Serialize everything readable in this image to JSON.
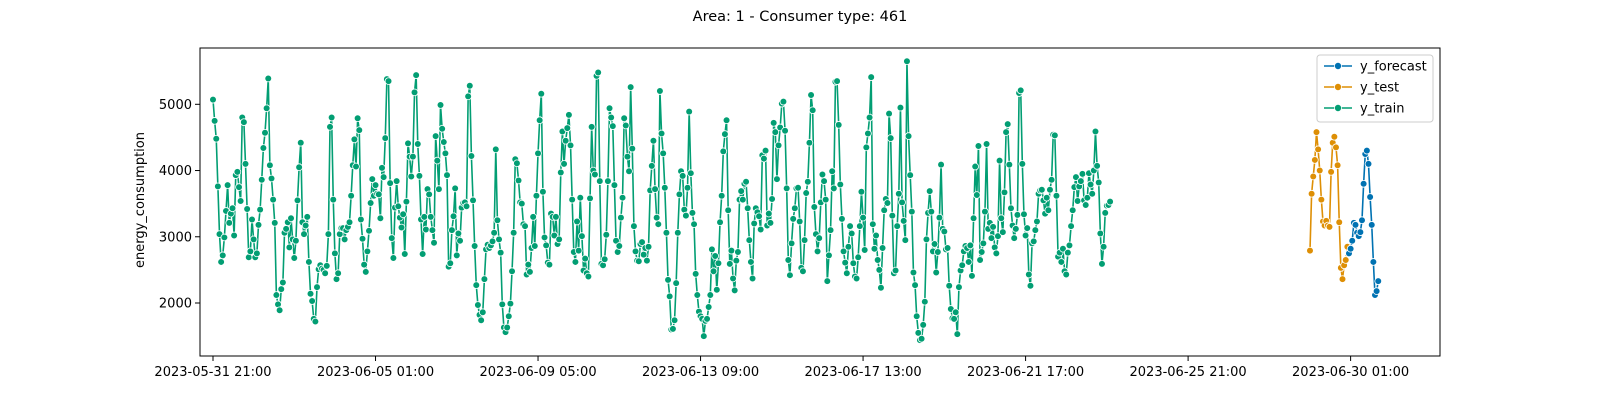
{
  "chart_data": {
    "type": "line",
    "title": "Area: 1 - Consumer type: 461",
    "xlabel": "",
    "ylabel": "energy_consumption",
    "x_start": "2023-05-31 21:00",
    "x_freq": "hourly",
    "x_ticks": [
      "2023-05-31 21:00",
      "2023-06-05 01:00",
      "2023-06-09 05:00",
      "2023-06-13 09:00",
      "2023-06-17 13:00",
      "2023-06-21 17:00",
      "2023-06-25 21:00",
      "2023-06-30 01:00"
    ],
    "yticks": [
      2000,
      3000,
      4000,
      5000
    ],
    "xlim": [
      "2023-05-31 13:00",
      "2023-07-02 08:00"
    ],
    "ylim": [
      1200,
      5850
    ],
    "grid": false,
    "legend_position": "top-right",
    "colors": {
      "y_forecast": "#0072b2",
      "y_test": "#de8f05",
      "y_train": "#029e73"
    },
    "series": [
      {
        "name": "y_train",
        "start": "2023-05-31 21:00",
        "values": [
          5070,
          4750,
          4480,
          3760,
          3040,
          2620,
          2720,
          2990,
          3390,
          3780,
          3210,
          3350,
          3430,
          3020,
          3930,
          3980,
          3750,
          3540,
          4800,
          4730,
          4100,
          3420,
          2690,
          2780,
          3260,
          2960,
          2690,
          2750,
          3180,
          3410,
          3860,
          4340,
          4570,
          4940,
          5390,
          4080,
          3880,
          3560,
          3210,
          2120,
          1980,
          1890,
          2210,
          2310,
          3060,
          3120,
          3220,
          2840,
          3280,
          2960,
          2680,
          2940,
          3550,
          4050,
          4420,
          3220,
          3040,
          3170,
          3300,
          2620,
          2140,
          2030,
          1760,
          1720,
          2240,
          2510,
          2570,
          2520,
          2500,
          2450,
          2560,
          3040,
          4660,
          4800,
          3560,
          2750,
          2360,
          2450,
          3040,
          3130,
          3130,
          2960,
          3100,
          3150,
          3220,
          3620,
          4080,
          4470,
          4060,
          4790,
          4610,
          3260,
          2970,
          2580,
          2470,
          2780,
          3090,
          3510,
          3870,
          3620,
          3780,
          3650,
          3640,
          3280,
          4040,
          3900,
          4490,
          5380,
          5350,
          3810,
          2980,
          2680,
          3440,
          3840,
          3460,
          3290,
          3140,
          3340,
          2740,
          3530,
          4410,
          4210,
          3910,
          4210,
          5180,
          5440,
          4400,
          3920,
          3260,
          2740,
          3300,
          3110,
          3720,
          3640,
          3300,
          3100,
          2910,
          4520,
          4150,
          3720,
          4990,
          4630,
          4430,
          4260,
          3930,
          2550,
          2600,
          3100,
          3310,
          3730,
          2720,
          3050,
          2940,
          3440,
          3510,
          3520,
          3460,
          5120,
          5280,
          4220,
          3550,
          2860,
          2270,
          1970,
          1820,
          1740,
          1860,
          2360,
          2810,
          2880,
          2830,
          2870,
          2930,
          3060,
          4320,
          3250,
          2960,
          2760,
          1980,
          1630,
          1560,
          1630,
          1800,
          1990,
          2480,
          3060,
          4170,
          4110,
          3850,
          3520,
          3500,
          3190,
          3160,
          2430,
          2580,
          2470,
          2830,
          3300,
          2860,
          3620,
          4260,
          4760,
          5160,
          3680,
          2990,
          2870,
          2610,
          2580,
          3350,
          3300,
          3020,
          3300,
          2890,
          2960,
          3970,
          4590,
          4100,
          4450,
          4640,
          4840,
          4380,
          3560,
          2770,
          2620,
          3230,
          2790,
          3590,
          3010,
          2490,
          2670,
          2450,
          2400,
          3580,
          4660,
          4000,
          3940,
          5430,
          5480,
          3840,
          2590,
          2570,
          2660,
          3030,
          3840,
          4940,
          4800,
          4670,
          3780,
          2940,
          2770,
          2860,
          3290,
          3590,
          4790,
          4680,
          4210,
          3990,
          5260,
          4330,
          3160,
          2780,
          2640,
          2630,
          2890,
          2920,
          2730,
          2830,
          2640,
          2850,
          3700,
          4070,
          4450,
          3720,
          3290,
          3190,
          5200,
          4560,
          4260,
          3740,
          3060,
          2350,
          2100,
          1600,
          1610,
          1740,
          2300,
          3060,
          3640,
          3990,
          3920,
          3410,
          3320,
          3740,
          4890,
          3960,
          3360,
          3190,
          2440,
          2120,
          1870,
          1800,
          1760,
          1500,
          1730,
          1760,
          1940,
          2120,
          2810,
          2480,
          2710,
          2200,
          2600,
          3220,
          3620,
          4290,
          4550,
          4760,
          3400,
          2590,
          2790,
          2370,
          2190,
          2640,
          2770,
          3560,
          3690,
          3560,
          3800,
          3830,
          3430,
          2950,
          2620,
          2370,
          3200,
          3430,
          3370,
          3310,
          3110,
          4230,
          4180,
          4300,
          3170,
          3350,
          3210,
          3570,
          4720,
          4580,
          3870,
          4380,
          4650,
          5010,
          5040,
          4600,
          3730,
          2650,
          2420,
          2900,
          3270,
          3430,
          3730,
          3740,
          3230,
          2530,
          2480,
          2950,
          3660,
          3830,
          4420,
          5140,
          4910,
          3450,
          3040,
          2780,
          2980,
          3520,
          3940,
          3840,
          3560,
          2330,
          2720,
          3100,
          3990,
          3730,
          5340,
          5350,
          4690,
          3790,
          3270,
          2780,
          2610,
          2450,
          2850,
          3160,
          3050,
          2600,
          2400,
          2370,
          2690,
          3160,
          3680,
          3290,
          2800,
          4350,
          4560,
          4800,
          5410,
          3190,
          2820,
          3020,
          2650,
          2500,
          2230,
          2830,
          3400,
          3570,
          3510,
          4860,
          4490,
          3320,
          2450,
          2490,
          3160,
          3650,
          4950,
          3520,
          3240,
          2950,
          5650,
          4520,
          3930,
          3380,
          2460,
          2270,
          1800,
          1550,
          1440,
          1460,
          1670,
          2020,
          2960,
          3360,
          3690,
          3380,
          2780,
          2890,
          2460,
          2770,
          3290,
          4090,
          3120,
          3080,
          2810,
          2830,
          2260,
          1910,
          1770,
          1760,
          1860,
          1530,
          2240,
          2490,
          2570,
          2780,
          2860,
          2830,
          2620,
          2870,
          2410,
          3280,
          4060,
          3630,
          4370,
          2650,
          2770,
          2900,
          3380,
          4400,
          3120,
          3210,
          2980,
          3150,
          2840,
          2750,
          3010,
          4150,
          3280,
          3070,
          3670,
          4580,
          4700,
          4090,
          3430,
          3170,
          2980,
          3120,
          3330,
          5170,
          5210,
          4100,
          3340,
          3020,
          3130,
          2430,
          2260,
          2900,
          2930,
          3100,
          3230,
          3650,
          3700,
          3710,
          3550,
          3350,
          3590,
          3400,
          3710,
          3860,
          4540,
          4530,
          3620,
          2700,
          2760,
          2620,
          2820,
          2480,
          2430,
          2760,
          2870,
          3160,
          3400,
          3750,
          3900,
          3540,
          3760,
          3840,
          3950,
          3550,
          3480,
          3590,
          3960,
          3790,
          3650,
          4000,
          4590,
          4070,
          3820,
          3050,
          2590,
          2850,
          3360,
          3470,
          3480,
          3530
        ]
      },
      {
        "name": "y_test",
        "start": "2023-06-29 00:00",
        "values": [
          2790,
          3650,
          3910,
          4160,
          4580,
          4320,
          4000,
          3560,
          3230,
          3170,
          3240,
          3170,
          3150,
          3980,
          4420,
          4510,
          4350,
          4080,
          3220,
          2530,
          2360,
          2570,
          2650,
          2850
        ]
      },
      {
        "name": "y_forecast",
        "start": "2023-06-30 00:00",
        "values": [
          2750,
          2820,
          2940,
          3210,
          3180,
          3060,
          3010,
          3070,
          3250,
          3800,
          4250,
          4300,
          4100,
          3600,
          3180,
          2620,
          2120,
          2180,
          2330
        ]
      }
    ]
  }
}
